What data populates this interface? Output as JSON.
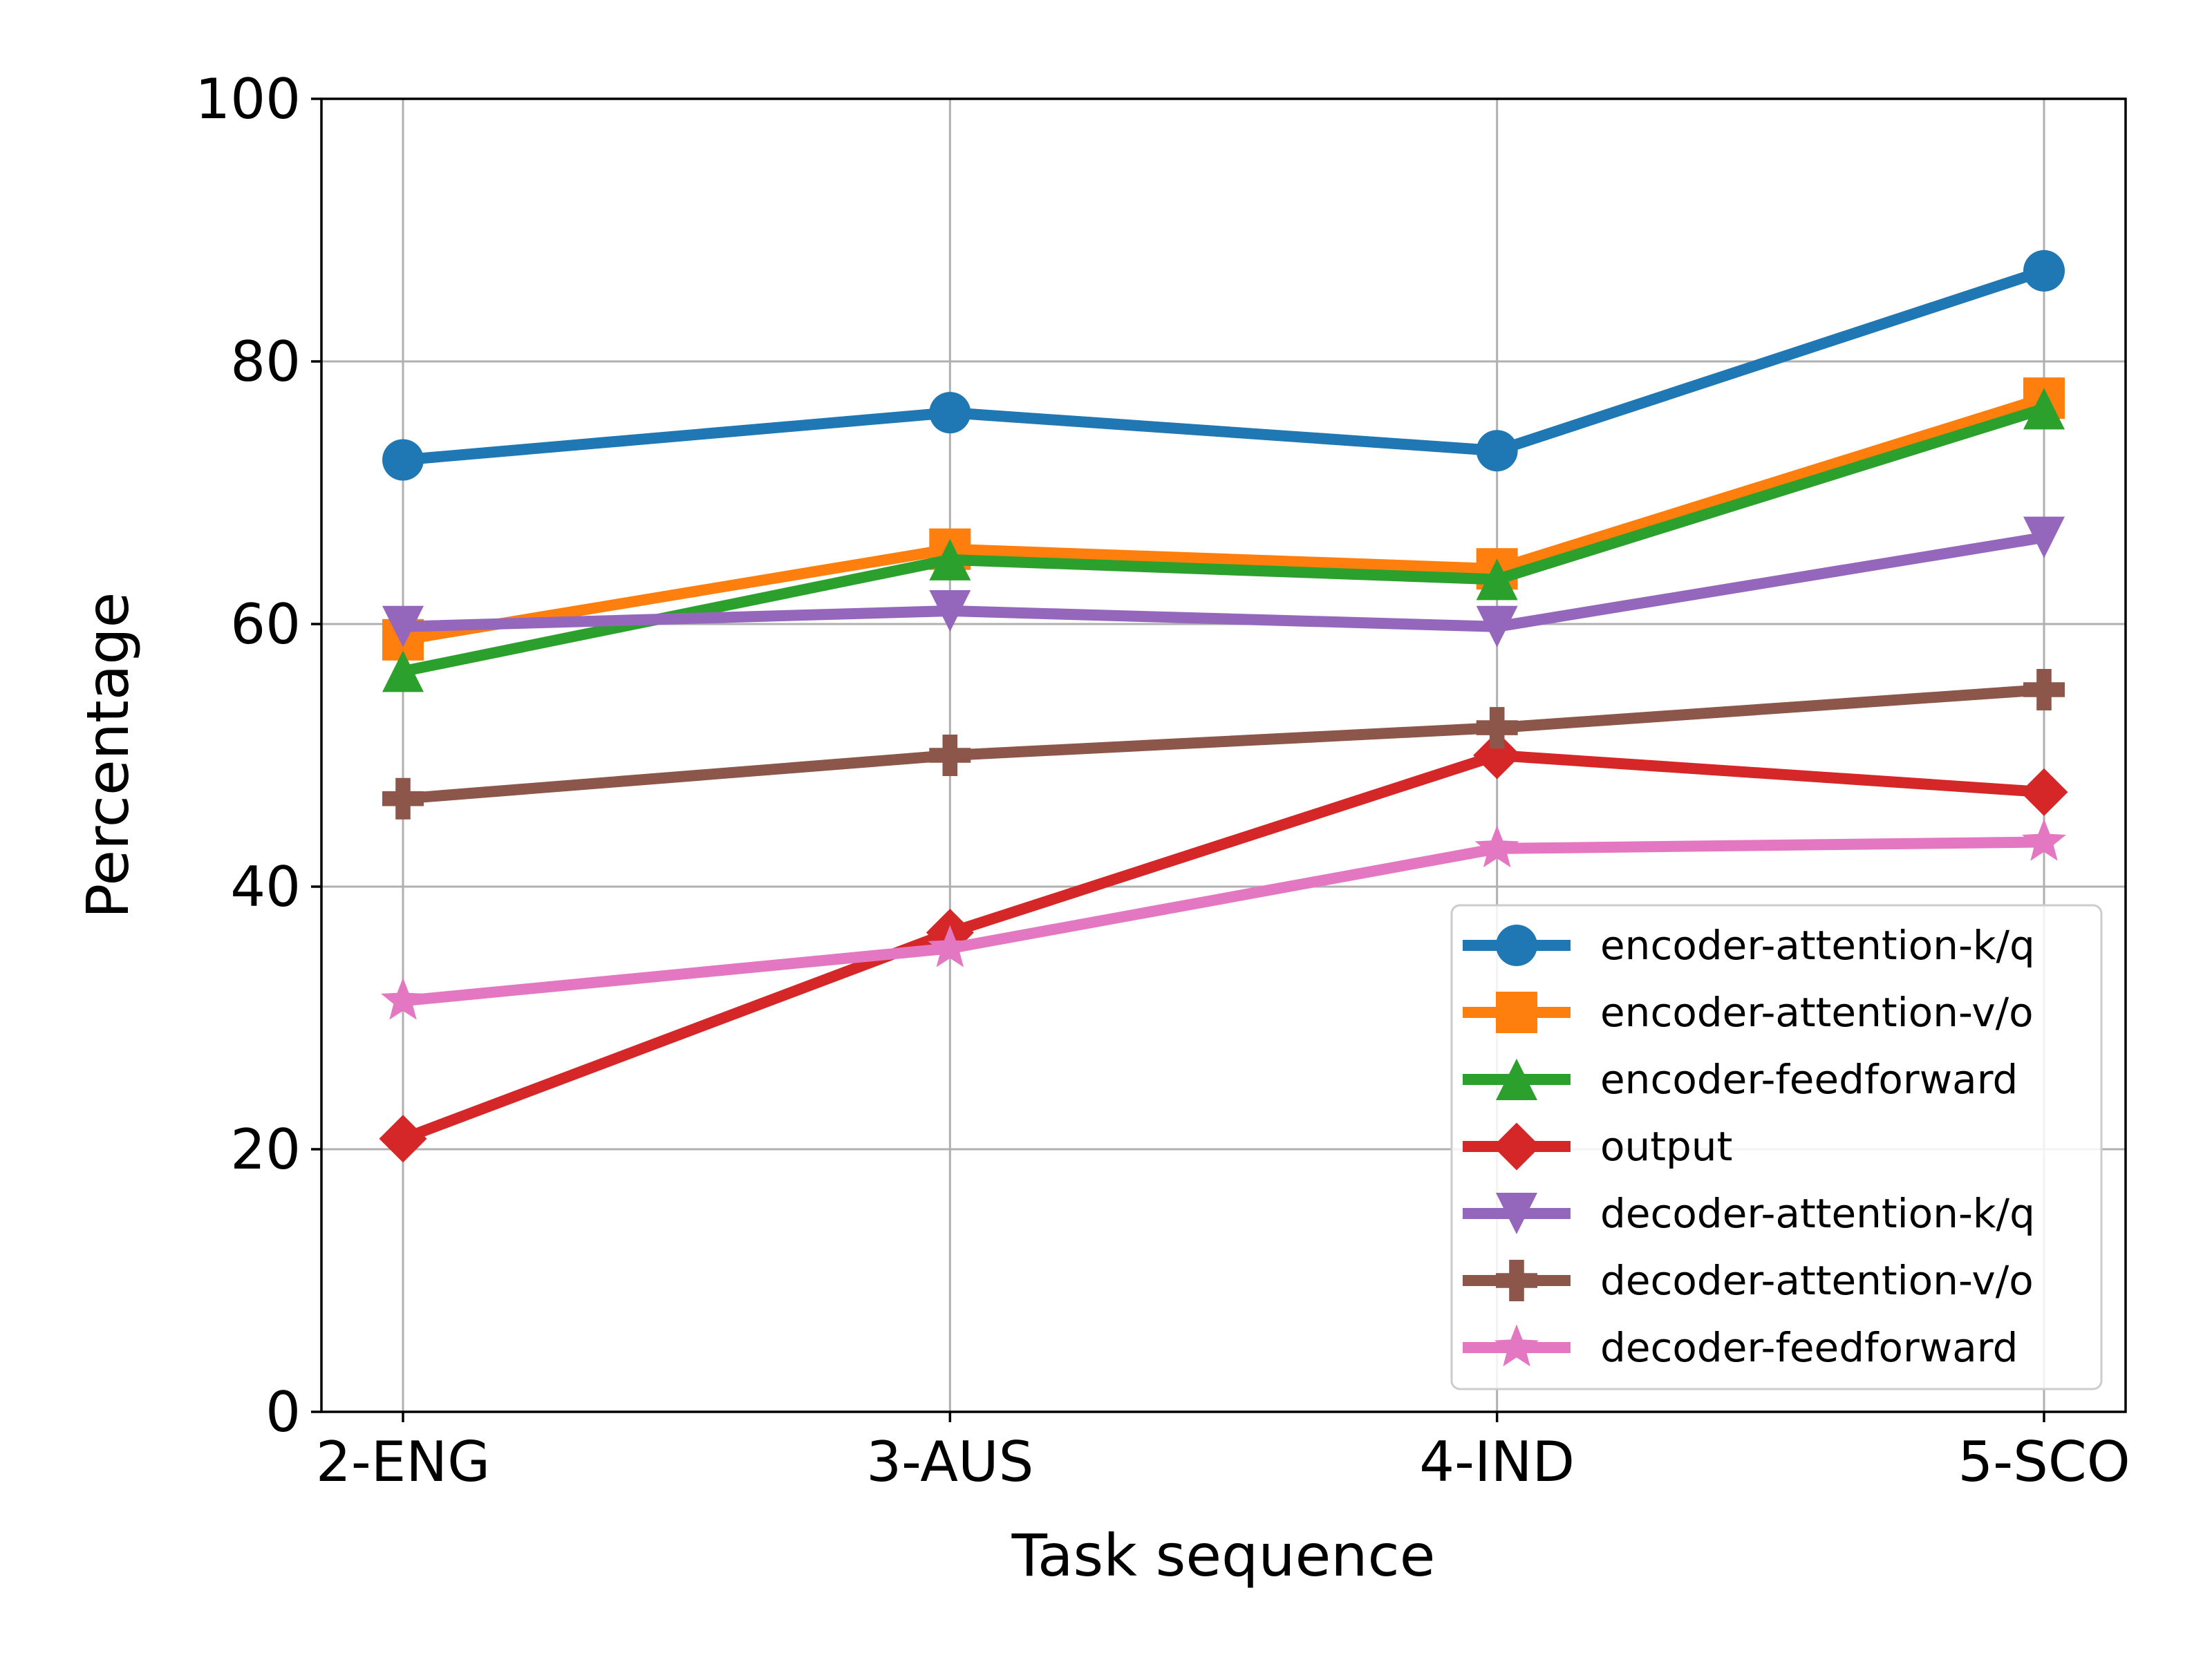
{
  "chart_data": {
    "type": "line",
    "title": "",
    "xlabel": "Task sequence",
    "ylabel": "Percentage",
    "categories": [
      "2-ENG",
      "3-AUS",
      "4-IND",
      "5-SCO"
    ],
    "ylim": [
      0,
      100
    ],
    "yticks": [
      0,
      20,
      40,
      60,
      80,
      100
    ],
    "ytick_labels": [
      "0",
      "20",
      "40",
      "60",
      "80",
      "100"
    ],
    "grid": true,
    "legend_position": "lower-right",
    "series": [
      {
        "name": "encoder-attention-k/q",
        "color": "#1f77b4",
        "marker": "circle",
        "values": [
          72.5,
          76.1,
          73.2,
          86.9
        ]
      },
      {
        "name": "encoder-attention-v/o",
        "color": "#ff7f0e",
        "marker": "square",
        "values": [
          58.8,
          65.7,
          64.2,
          77.2
        ]
      },
      {
        "name": "encoder-feedforward",
        "color": "#2ca02c",
        "marker": "triangle-up",
        "values": [
          56.4,
          64.9,
          63.4,
          76.4
        ]
      },
      {
        "name": "output",
        "color": "#d62728",
        "marker": "diamond",
        "values": [
          20.8,
          36.5,
          50.0,
          47.2
        ]
      },
      {
        "name": "decoder-attention-k/q",
        "color": "#9467bd",
        "marker": "triangle-down",
        "values": [
          59.8,
          61.0,
          59.8,
          66.6
        ]
      },
      {
        "name": "decoder-attention-v/o",
        "color": "#8c564b",
        "marker": "plus",
        "values": [
          46.7,
          50.0,
          52.1,
          55.0
        ]
      },
      {
        "name": "decoder-feedforward",
        "color": "#e377c2",
        "marker": "star",
        "values": [
          31.3,
          35.3,
          42.9,
          43.4
        ]
      }
    ]
  }
}
